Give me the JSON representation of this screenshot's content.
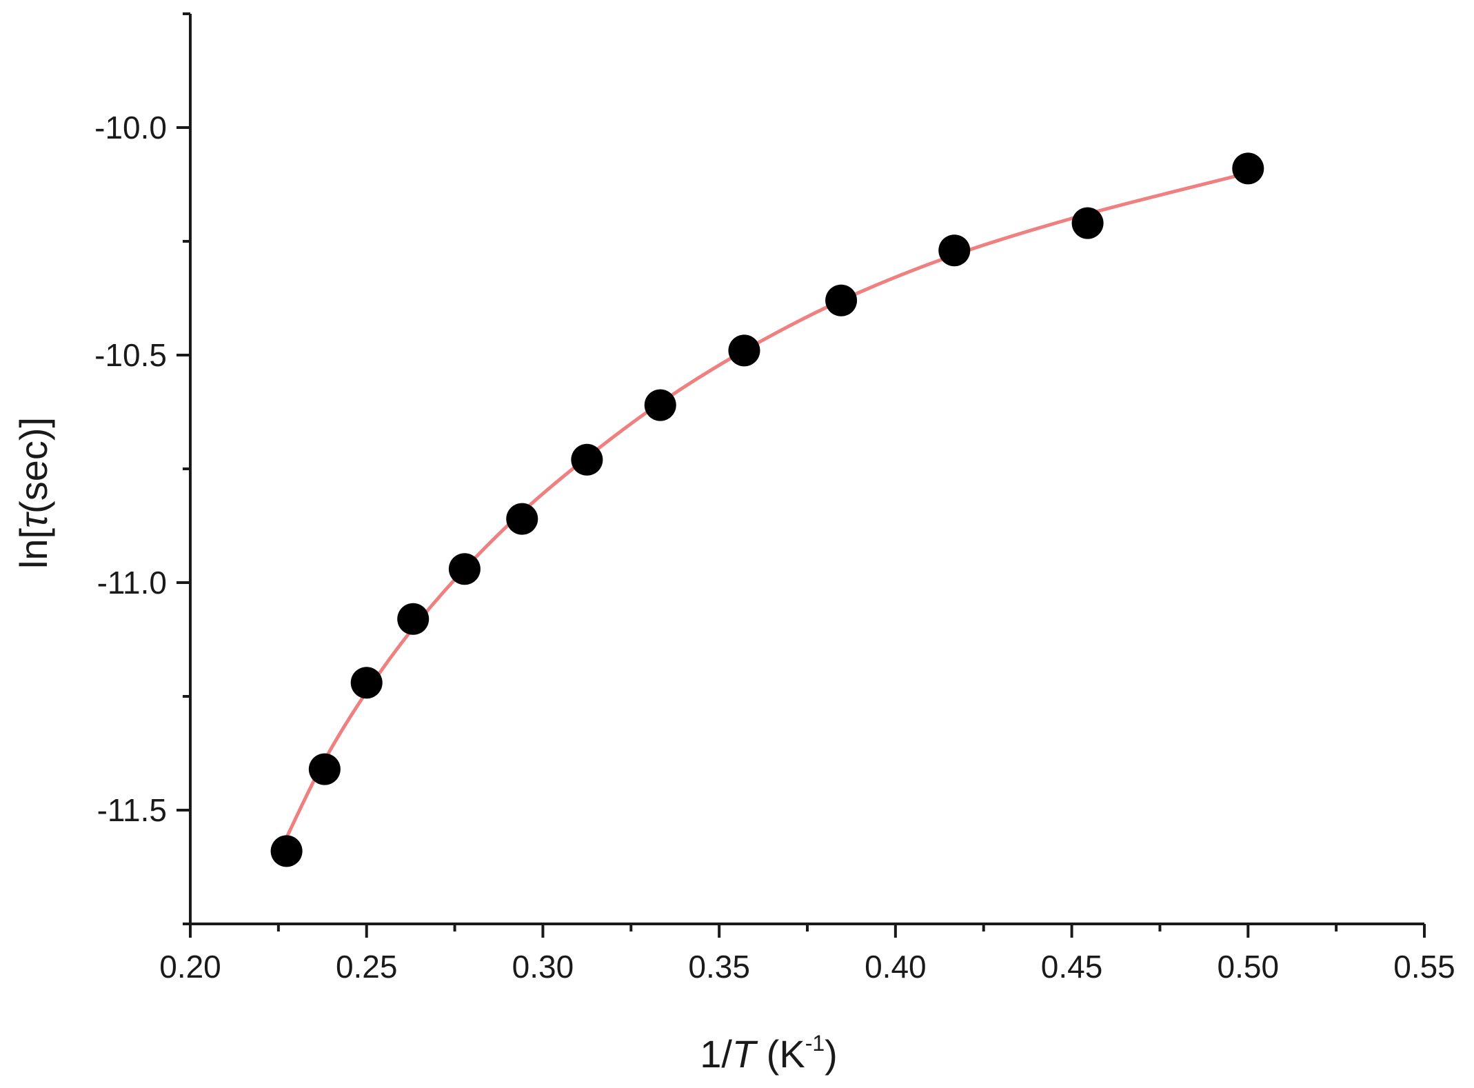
{
  "chart_data": {
    "type": "scatter",
    "title": "",
    "xlabel": {
      "prefix": "1/",
      "italic": "T",
      "units_open": " (K",
      "superscript": "-1",
      "units_close": ")"
    },
    "ylabel": {
      "prefix": "ln[",
      "italic": "τ",
      "suffix": "(sec)]"
    },
    "xlim": [
      0.2,
      0.55
    ],
    "ylim": [
      -11.75,
      -9.75
    ],
    "x_ticks": [
      {
        "value": 0.2,
        "label": "0.20"
      },
      {
        "value": 0.25,
        "label": "0.25"
      },
      {
        "value": 0.3,
        "label": "0.30"
      },
      {
        "value": 0.35,
        "label": "0.35"
      },
      {
        "value": 0.4,
        "label": "0.40"
      },
      {
        "value": 0.45,
        "label": "0.45"
      },
      {
        "value": 0.5,
        "label": "0.50"
      },
      {
        "value": 0.55,
        "label": "0.55"
      }
    ],
    "x_minor_ticks": [
      0.225,
      0.275,
      0.325,
      0.375,
      0.425,
      0.475,
      0.525
    ],
    "y_ticks": [
      {
        "value": -10.0,
        "label": "-10.0"
      },
      {
        "value": -10.5,
        "label": "-10.5"
      },
      {
        "value": -11.0,
        "label": "-11.0"
      },
      {
        "value": -11.5,
        "label": "-11.5"
      }
    ],
    "y_minor_ticks": [
      -9.75,
      -10.25,
      -10.75,
      -11.25,
      -11.75
    ],
    "grid": false,
    "series": [
      {
        "type": "scatter",
        "color": "#000000",
        "x": [
          0.2273,
          0.2381,
          0.25,
          0.2632,
          0.2778,
          0.2941,
          0.3125,
          0.3333,
          0.3571,
          0.3846,
          0.4167,
          0.4545,
          0.5
        ],
        "y": [
          -11.59,
          -11.41,
          -11.22,
          -11.08,
          -10.97,
          -10.86,
          -10.73,
          -10.61,
          -10.49,
          -10.38,
          -10.27,
          -10.21,
          -10.09
        ]
      },
      {
        "type": "line",
        "color": "#f08080",
        "x": [
          0.2273,
          0.2381,
          0.25,
          0.2632,
          0.2778,
          0.2941,
          0.3125,
          0.3333,
          0.3571,
          0.3846,
          0.4167,
          0.4545,
          0.5
        ],
        "y": [
          -11.56,
          -11.39,
          -11.24,
          -11.1,
          -10.97,
          -10.845,
          -10.725,
          -10.605,
          -10.49,
          -10.38,
          -10.28,
          -10.19,
          -10.1
        ]
      }
    ]
  }
}
